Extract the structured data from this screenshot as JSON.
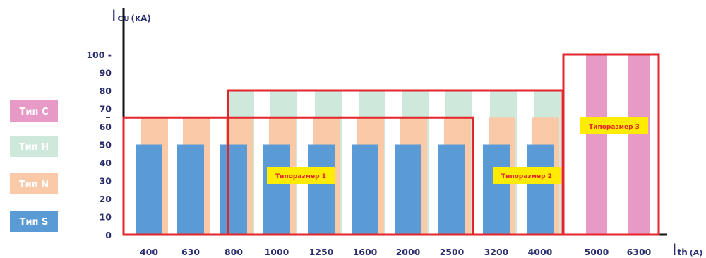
{
  "chart_data": {
    "type": "bar",
    "categories": [
      "400",
      "630",
      "800",
      "1000",
      "1250",
      "1600",
      "2000",
      "2500",
      "3200",
      "4000",
      "5000",
      "6300"
    ],
    "ylim": [
      0,
      110
    ],
    "yticks": [
      0,
      10,
      20,
      30,
      40,
      50,
      60,
      70,
      80,
      90,
      100
    ],
    "ytick_labels": [
      "0",
      "10",
      "20",
      "30",
      "40",
      "50",
      "60",
      "70",
      "80",
      "90",
      "100 -"
    ],
    "y_extra_tick": 65,
    "ylabel": {
      "main": "I",
      "sub": "CU",
      "unit": "(кА)"
    },
    "xlabel": {
      "main": "I",
      "sub": "th",
      "unit": "(A)"
    },
    "legend_placement": "left",
    "series": [
      {
        "name": "Тип S",
        "color": "#5b9bd5",
        "values": [
          50,
          50,
          50,
          50,
          50,
          50,
          50,
          50,
          50,
          50,
          null,
          null
        ]
      },
      {
        "name": "Тип N",
        "color": "#f9c9a8",
        "values": [
          65,
          65,
          65,
          65,
          65,
          65,
          65,
          65,
          65,
          65,
          null,
          null
        ]
      },
      {
        "name": "Тип H",
        "color": "#cfe8dc",
        "values": [
          null,
          null,
          80,
          80,
          80,
          80,
          80,
          80,
          80,
          80,
          null,
          null
        ]
      },
      {
        "name": "Тип C",
        "color": "#e89ac6",
        "values": [
          null,
          null,
          null,
          null,
          null,
          null,
          null,
          null,
          null,
          null,
          100,
          100
        ]
      }
    ],
    "frames": [
      {
        "label": "Типоразмер 1",
        "from": "400",
        "to": "2500",
        "value": 65,
        "color": "#e3262c"
      },
      {
        "label": "Типоразмер 2",
        "from": "800",
        "to": "4000",
        "value": 80,
        "color": "#e3262c"
      },
      {
        "label": "Типоразмер 3",
        "from": "5000",
        "to": "6300",
        "value": 100,
        "color": "#e3262c"
      }
    ],
    "legend_order": [
      "Тип C",
      "Тип H",
      "Тип N",
      "Тип S"
    ],
    "grid": false
  }
}
